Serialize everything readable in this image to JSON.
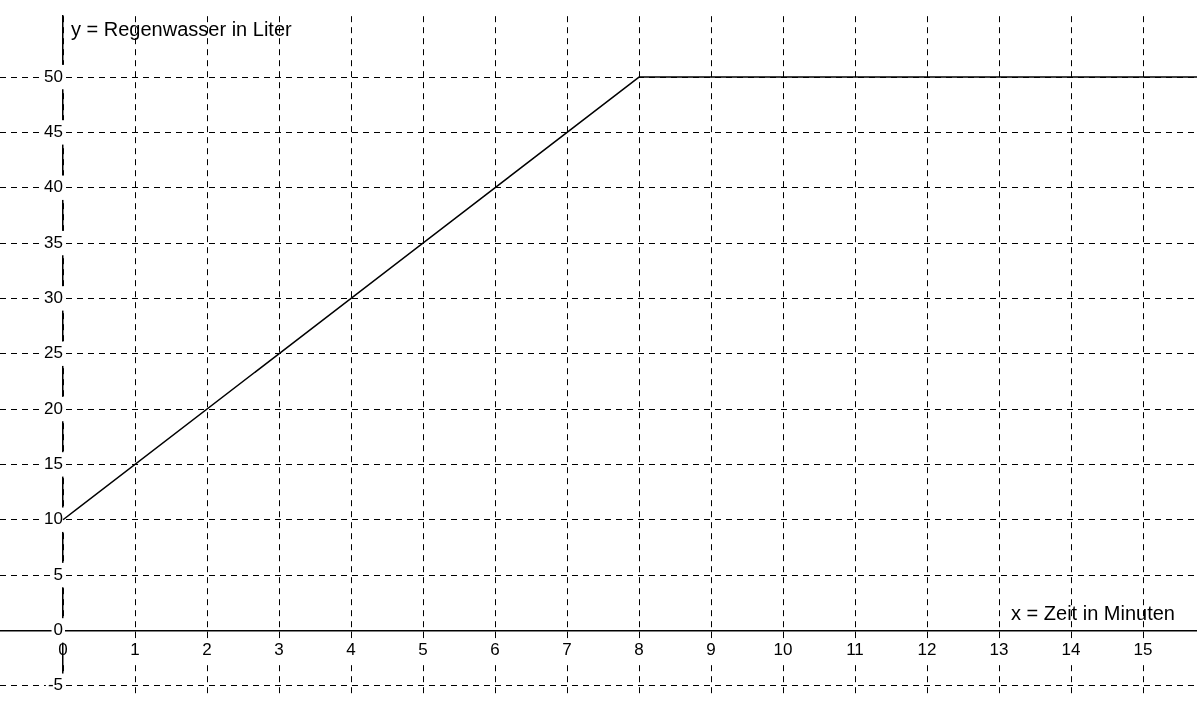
{
  "chart_data": {
    "type": "line",
    "xlabel": "x = Zeit in Minuten",
    "ylabel": "y = Regenwasser in Liter",
    "x": [
      0,
      8,
      15.75
    ],
    "series": [
      {
        "color": "#000000",
        "values": [
          10,
          50,
          50
        ]
      }
    ],
    "xlim": [
      -0.875,
      15.75
    ],
    "ylim": [
      -6,
      55.5
    ],
    "xticks": [
      0,
      1,
      2,
      3,
      4,
      5,
      6,
      7,
      8,
      9,
      10,
      11,
      12,
      13,
      14,
      15
    ],
    "yticks": [
      -5,
      0,
      5,
      10,
      15,
      20,
      25,
      30,
      35,
      40,
      45,
      50
    ],
    "grid": true,
    "legend": false,
    "marker": "none",
    "line_style": "solid"
  }
}
